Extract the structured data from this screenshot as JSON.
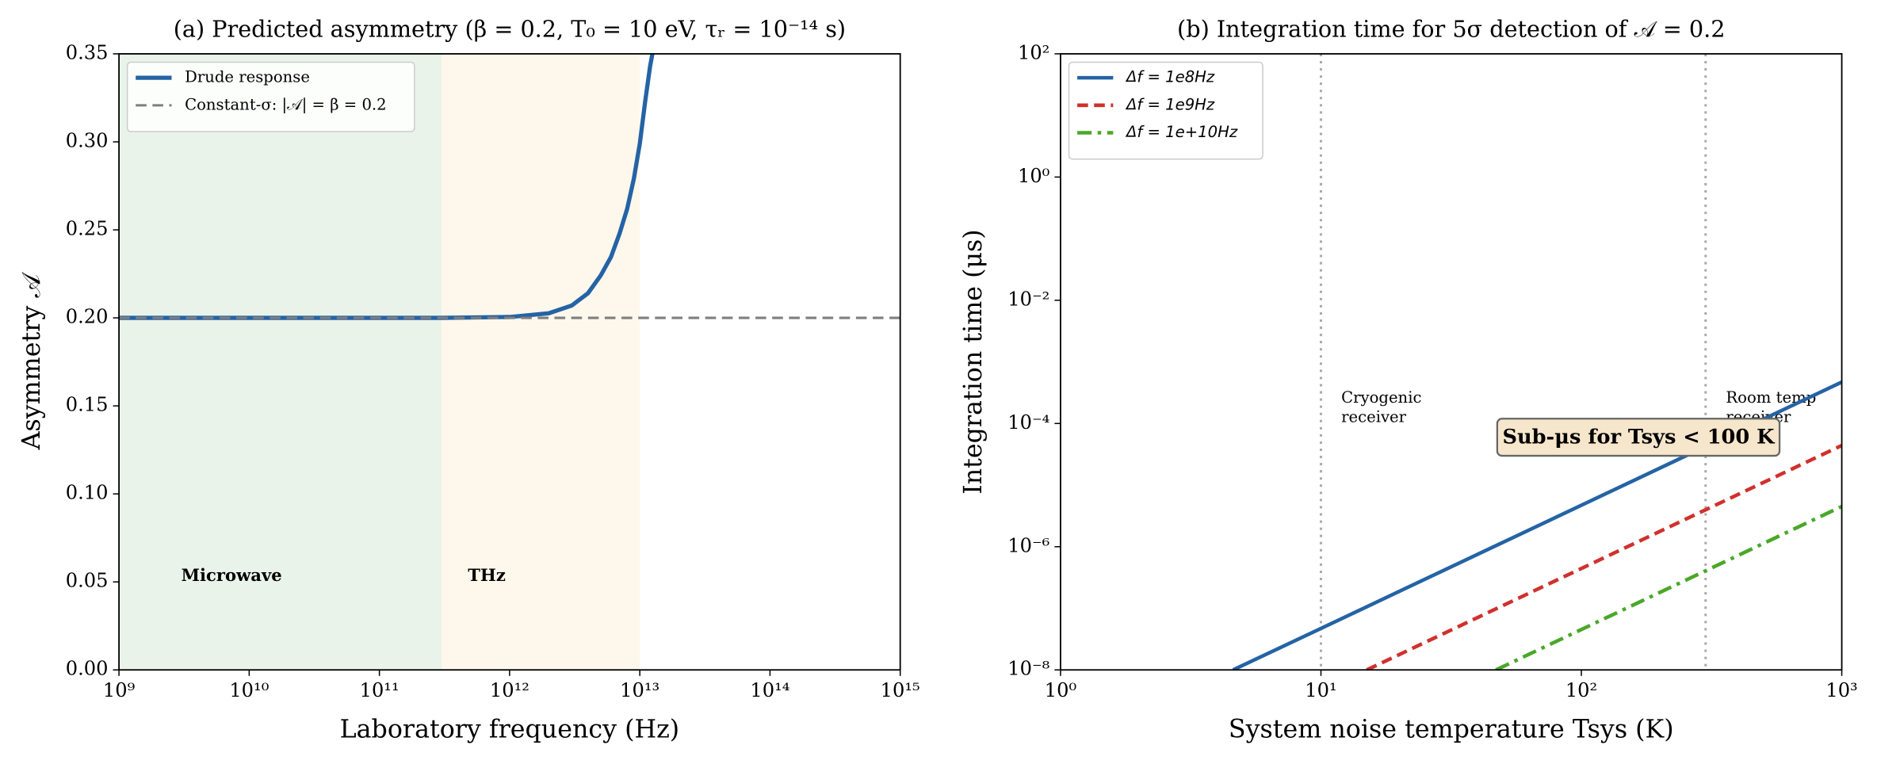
{
  "chart_data": [
    {
      "type": "line",
      "title": "(a) Predicted asymmetry (β = 0.2, T₀ = 10 eV, τᵣ = 10⁻¹⁴ s)",
      "xlabel": "Laboratory frequency (Hz)",
      "ylabel": "Asymmetry 𝒜",
      "xscale": "log",
      "yscale": "linear",
      "xlim": [
        1000000000.0,
        1000000000000000.0
      ],
      "ylim": [
        0,
        0.35
      ],
      "xticks": [
        {
          "value": 1000000000.0,
          "label": "10⁹"
        },
        {
          "value": 10000000000.0,
          "label": "10¹⁰"
        },
        {
          "value": 100000000000.0,
          "label": "10¹¹"
        },
        {
          "value": 1000000000000.0,
          "label": "10¹²"
        },
        {
          "value": 10000000000000.0,
          "label": "10¹³"
        },
        {
          "value": 100000000000000.0,
          "label": "10¹⁴"
        },
        {
          "value": 1000000000000000.0,
          "label": "10¹⁵"
        }
      ],
      "yticks": [
        {
          "value": 0,
          "label": "0.00"
        },
        {
          "value": 0.05,
          "label": "0.05"
        },
        {
          "value": 0.1,
          "label": "0.10"
        },
        {
          "value": 0.15,
          "label": "0.15"
        },
        {
          "value": 0.2,
          "label": "0.20"
        },
        {
          "value": 0.25,
          "label": "0.25"
        },
        {
          "value": 0.3,
          "label": "0.30"
        },
        {
          "value": 0.35,
          "label": "0.35"
        }
      ],
      "x": [
        1000000000.0,
        10000000000.0,
        100000000000.0,
        300000000000.0,
        1000000000000.0,
        2000000000000.0,
        3000000000000.0,
        4000000000000.0,
        5000000000000.0,
        6000000000000.0,
        7000000000000.0,
        8000000000000.0,
        9000000000000.0,
        10000000000000.0,
        11000000000000.0,
        12000000000000.0,
        12500000000000.0,
        1000000000000000.0
      ],
      "series": [
        {
          "name": "Drude response",
          "color": "#2463a5",
          "linestyle": "solid",
          "linewidth": 3.5,
          "values": [
            0.2,
            0.2,
            0.2,
            0.2,
            0.2005,
            0.2026,
            0.207,
            0.214,
            0.224,
            0.2345,
            0.248,
            0.262,
            0.279,
            0.299,
            0.323,
            0.343,
            0.35,
            null
          ]
        },
        {
          "name": "Constant-σ: |𝒜| = β = 0.2",
          "color": "#7f7f7f",
          "linestyle": "dashed",
          "linewidth": 2,
          "values": [
            0.2,
            0.2,
            0.2,
            0.2,
            0.2,
            0.2,
            0.2,
            0.2,
            0.2,
            0.2,
            0.2,
            0.2,
            0.2,
            0.2,
            0.2,
            0.2,
            0.2,
            0.2
          ]
        }
      ],
      "regions": [
        {
          "label": "Microwave",
          "xlim": [
            1000000000.0,
            300000000000.0
          ],
          "color": "#2e8b2e",
          "text_color": "#1a7a1a"
        },
        {
          "label": "THz",
          "xlim": [
            300000000000.0,
            10000000000000.0
          ],
          "color": "#f5b041",
          "text_color": "#f0a500"
        }
      ],
      "legend": "upper left"
    },
    {
      "type": "line",
      "title": "(b) Integration time for 5σ detection of 𝒜 = 0.2",
      "xlabel": "System noise temperature Tsys (K)",
      "ylabel": "Integration time (μs)",
      "xscale": "log",
      "yscale": "log",
      "xlim": [
        1,
        1000
      ],
      "ylim": [
        1e-08,
        100
      ],
      "xticks": [
        {
          "value": 1,
          "label": "10⁰"
        },
        {
          "value": 10,
          "label": "10¹"
        },
        {
          "value": 100,
          "label": "10²"
        },
        {
          "value": 1000,
          "label": "10³"
        }
      ],
      "yticks": [
        {
          "value": 1e-08,
          "label": "10⁻⁸"
        },
        {
          "value": 1e-06,
          "label": "10⁻⁶"
        },
        {
          "value": 0.0001,
          "label": "10⁻⁴"
        },
        {
          "value": 0.01,
          "label": "10⁻²"
        },
        {
          "value": 1,
          "label": "10⁰"
        },
        {
          "value": 100,
          "label": "10²"
        }
      ],
      "x": [
        4.6,
        15,
        47,
        1000
      ],
      "series": [
        {
          "name": "Δf = 1e8Hz",
          "color": "#2463a5",
          "linestyle": "solid",
          "linewidth": 3,
          "values": [
            1e-08,
            1.06e-07,
            1.04e-06,
            0.00047
          ]
        },
        {
          "name": "Δf = 1e9Hz",
          "color": "#d0312d",
          "linestyle": "dashed",
          "linewidth": 3,
          "values": [
            null,
            1e-08,
            9.8e-08,
            4.4e-05
          ]
        },
        {
          "name": "Δf = 1e+10Hz",
          "color": "#4aa829",
          "linestyle": "dashdot",
          "linewidth": 3,
          "values": [
            null,
            null,
            1e-08,
            4.5e-06
          ]
        }
      ],
      "vlines": [
        {
          "x": 10,
          "label": [
            "Cryogenic",
            "receiver"
          ]
        },
        {
          "x": 300,
          "label": [
            "Room temp",
            "receiver"
          ]
        }
      ],
      "annotations": [
        {
          "text": "Sub-μs for Tsys < 100 K"
        }
      ],
      "legend": "upper left"
    }
  ]
}
